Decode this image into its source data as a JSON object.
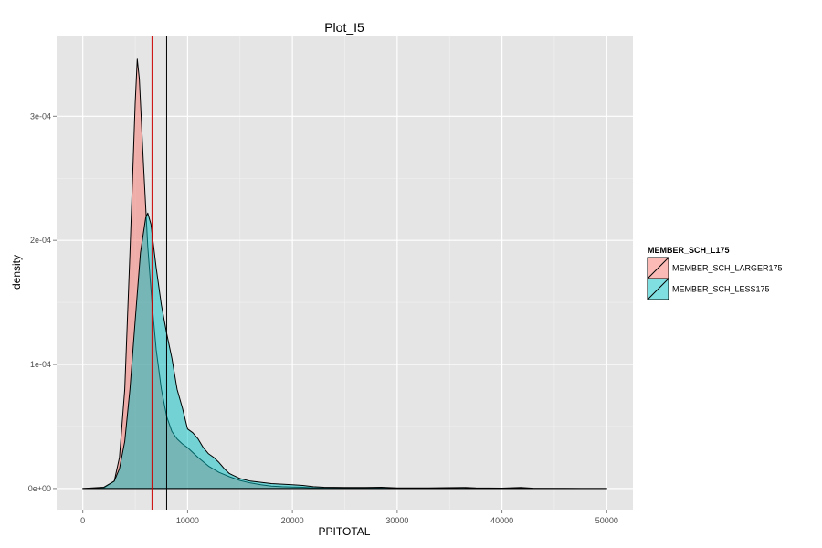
{
  "chart_data": {
    "type": "area",
    "title": "Plot_I5",
    "xlabel": "PPITOTAL",
    "ylabel": "density",
    "xlim": [
      -2500,
      52500
    ],
    "ylim": [
      -1.7e-05,
      0.000365
    ],
    "x_ticks": [
      0,
      10000,
      20000,
      30000,
      40000,
      50000
    ],
    "x_tick_labels": [
      "0",
      "10000",
      "20000",
      "30000",
      "40000",
      "50000"
    ],
    "y_ticks": [
      0,
      0.0001,
      0.0002,
      0.0003
    ],
    "y_tick_labels": [
      "0e+00",
      "1e-04",
      "2e-04",
      "3e-04"
    ],
    "grid": true,
    "legend_position": "right",
    "legend_title": "MEMBER_SCH_L175",
    "series": [
      {
        "name": "MEMBER_SCH_LARGER175",
        "fill": "#f8766d",
        "x": [
          0,
          2000,
          3000,
          3500,
          4000,
          4500,
          5000,
          5200,
          5400,
          5800,
          6200,
          6600,
          7000,
          7500,
          8000,
          8500,
          9000,
          9500,
          10000,
          11000,
          12000,
          13000,
          14000,
          15000,
          16000,
          17000,
          18000,
          19000,
          20000,
          21000,
          22000,
          25000,
          28000,
          30000,
          35000,
          40000,
          45000,
          50000
        ],
        "y": [
          0,
          5e-07,
          6e-06,
          2.5e-05,
          8e-05,
          0.00019,
          0.00031,
          0.000346,
          0.00033,
          0.00026,
          0.000195,
          0.00015,
          0.000112,
          8e-05,
          5.8e-05,
          4.6e-05,
          4e-05,
          3.6e-05,
          3.3e-05,
          2.5e-05,
          1.8e-05,
          1.3e-05,
          9.5e-06,
          6.5e-06,
          4.5e-06,
          3e-06,
          2e-06,
          1.5e-06,
          1.2e-06,
          1e-06,
          6e-07,
          4e-07,
          3e-07,
          2e-07,
          1e-07,
          1e-07,
          0,
          0
        ]
      },
      {
        "name": "MEMBER_SCH_LESS175",
        "fill": "#00bfc4",
        "x": [
          0,
          2000,
          3000,
          3500,
          4000,
          4500,
          5000,
          5500,
          6000,
          6200,
          6500,
          7000,
          7500,
          8000,
          8500,
          9000,
          9500,
          10000,
          10500,
          11000,
          11500,
          12000,
          12500,
          13000,
          13500,
          14000,
          15000,
          16000,
          17000,
          18000,
          19000,
          20000,
          21000,
          22000,
          23000,
          25000,
          27000,
          28500,
          30000,
          33000,
          36500,
          37500,
          40000,
          41800,
          43000,
          46000,
          50000
        ],
        "y": [
          0,
          1e-06,
          6e-06,
          1.6e-05,
          3.8e-05,
          8e-05,
          0.000135,
          0.00019,
          0.000218,
          0.000222,
          0.000213,
          0.000178,
          0.000148,
          0.000125,
          0.000105,
          8e-05,
          6.5e-05,
          4.8e-05,
          4.5e-05,
          4e-05,
          3.3e-05,
          2.8e-05,
          2.5e-05,
          2.1e-05,
          1.6e-05,
          1.2e-05,
          8e-06,
          6e-06,
          5e-06,
          4e-06,
          3.5e-06,
          3e-06,
          2.5e-06,
          1.5e-06,
          1e-06,
          8e-07,
          8e-07,
          1e-06,
          5e-07,
          5e-07,
          8e-07,
          5e-07,
          3e-07,
          8e-07,
          2e-07,
          1e-07,
          0
        ]
      }
    ],
    "vlines": [
      {
        "x": 6600,
        "color": "#cc0000"
      },
      {
        "x": 8000,
        "color": "#000000"
      }
    ]
  }
}
